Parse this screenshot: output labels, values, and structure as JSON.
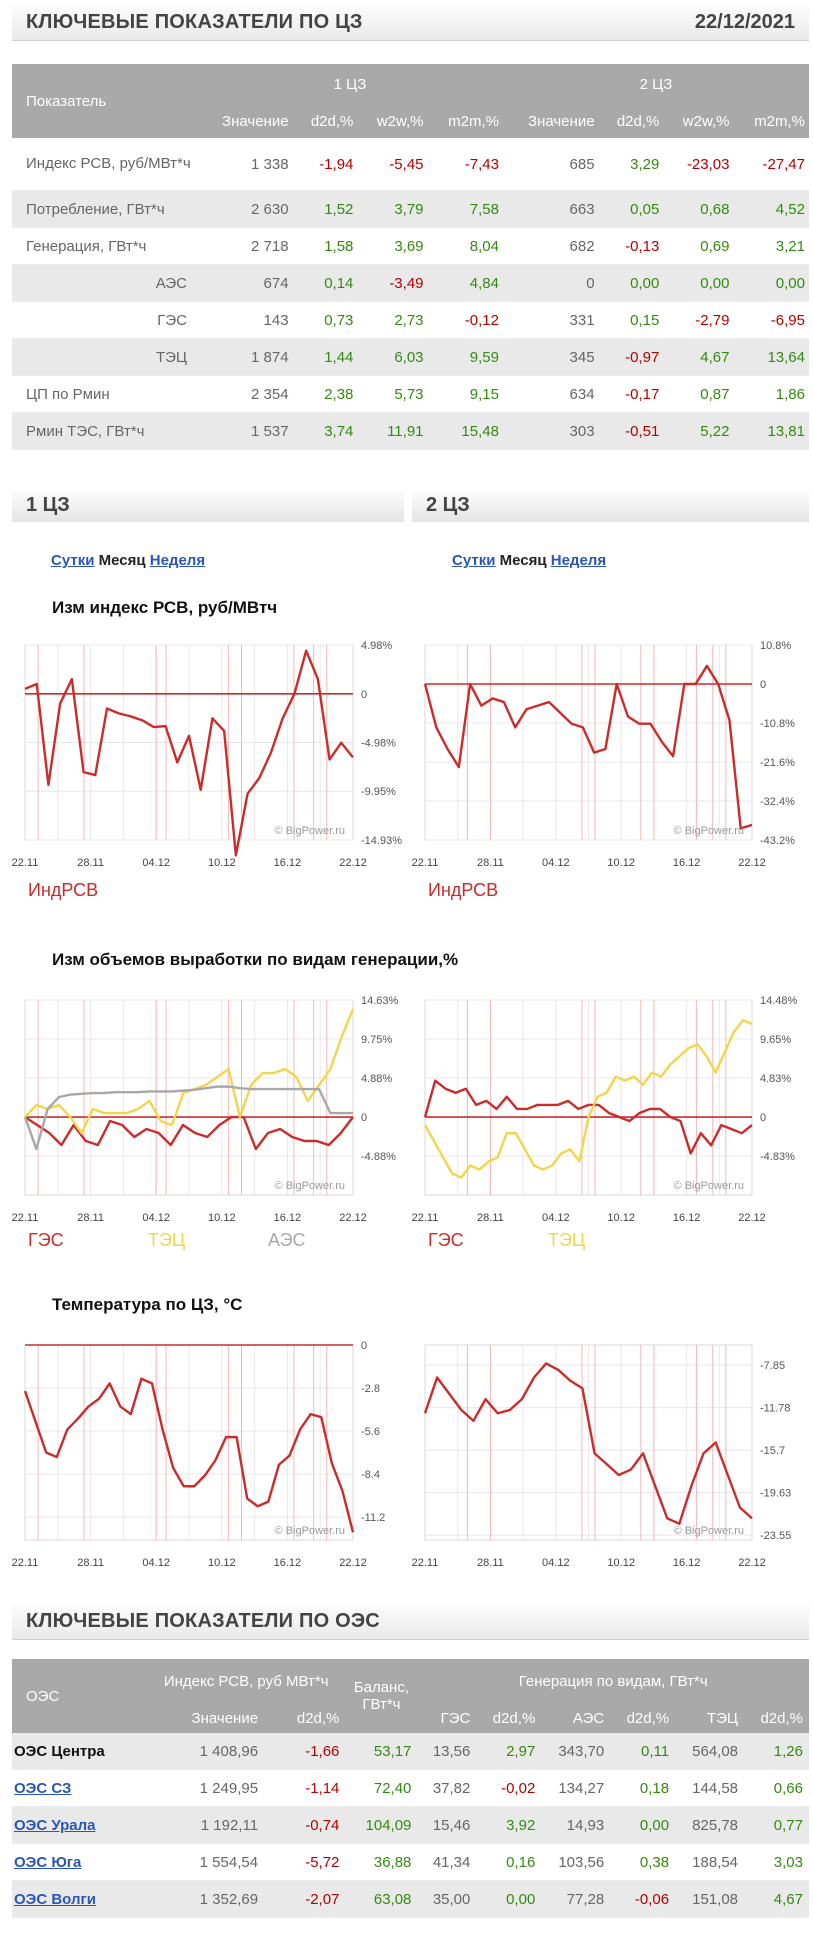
{
  "header": {
    "title": "КЛЮЧЕВЫЕ ПОКАЗАТЕЛИ ПО ЦЗ",
    "date": "22/12/2021"
  },
  "kp_table": {
    "col_indicator": "Показатель",
    "zone1": "1 ЦЗ",
    "zone2": "2 ЦЗ",
    "subcols": [
      "Значение",
      "d2d,%",
      "w2w,%",
      "m2m,%",
      "Значение",
      "d2d,%",
      "w2w,%",
      "m2m,%"
    ],
    "rows": [
      {
        "name": "Индекс РСВ, руб/МВт*ч",
        "values": [
          "1 338",
          "-1,94",
          "-5,45",
          "-7,43",
          "685",
          "3,29",
          "-23,03",
          "-27,47"
        ]
      },
      {
        "name": "Потребление, ГВт*ч",
        "values": [
          "2 630",
          "1,52",
          "3,79",
          "7,58",
          "663",
          "0,05",
          "0,68",
          "4,52"
        ]
      },
      {
        "name": "Генерация, ГВт*ч",
        "values": [
          "2 718",
          "1,58",
          "3,69",
          "8,04",
          "682",
          "-0,13",
          "0,69",
          "3,21"
        ]
      },
      {
        "name": "АЭС",
        "values": [
          "674",
          "0,14",
          "-3,49",
          "4,84",
          "0",
          "0,00",
          "0,00",
          "0,00"
        ]
      },
      {
        "name": "ГЭС",
        "values": [
          "143",
          "0,73",
          "2,73",
          "-0,12",
          "331",
          "0,15",
          "-2,79",
          "-6,95"
        ]
      },
      {
        "name": "ТЭЦ",
        "values": [
          "1 874",
          "1,44",
          "6,03",
          "9,59",
          "345",
          "-0,97",
          "4,67",
          "13,64"
        ]
      },
      {
        "name": "ЦП по Рмин",
        "values": [
          "2 354",
          "2,38",
          "5,73",
          "9,15",
          "634",
          "-0,17",
          "0,87",
          "1,86"
        ]
      },
      {
        "name": "Рмин ТЭС, ГВт*ч",
        "values": [
          "1 537",
          "3,74",
          "11,91",
          "15,48",
          "303",
          "-0,51",
          "5,22",
          "13,81"
        ]
      }
    ]
  },
  "zones": {
    "left": "1 ЦЗ",
    "right": "2 ЦЗ"
  },
  "tabs": {
    "day": "Сутки",
    "month": "Месяц",
    "week": "Неделя"
  },
  "chart_titles": {
    "price": "Изм индекс РСВ, руб/МВтч",
    "gen": "Изм объемов выработки по видам генерации,%",
    "temp": "Температура по ЦЗ, °С"
  },
  "legends": {
    "index": "ИндРСВ",
    "ges": "ГЭС",
    "tec": "ТЭЦ",
    "aes": "АЭС"
  },
  "watermark": "© BigPower.ru",
  "x_ticks": [
    "22.11",
    "28.11",
    "04.12",
    "10.12",
    "16.12",
    "22.12"
  ],
  "colors": {
    "red": "#cc2b2b",
    "yellow": "#f2d54a",
    "gray": "#a8a8a8",
    "link": "#2a56b8",
    "header_bg": "#a9a9a9"
  },
  "chart_data": [
    {
      "type": "line",
      "title": "Изм индекс РСВ, руб/МВтч",
      "zone": "1 ЦЗ",
      "ylim": [
        -14.93,
        4.98
      ],
      "yticks": [
        "4.98%",
        "0",
        "-4.98%",
        "-9.95%",
        "-14.93%"
      ],
      "ytick_values": [
        4.98,
        0,
        -4.98,
        -9.95,
        -14.93
      ],
      "series": [
        {
          "name": "ИндРСВ",
          "values": [
            0.5,
            1.0,
            -9.3,
            -1.0,
            1.5,
            -8.0,
            -8.3,
            -1.5,
            -2.0,
            -2.3,
            -2.7,
            -3.4,
            -3.3,
            -7.0,
            -4.3,
            -9.8,
            -2.5,
            -3.8,
            -16.5,
            -10.2,
            -8.6,
            -6.0,
            -2.5,
            0,
            4.4,
            1.5,
            -6.7,
            -5.0,
            -6.5
          ]
        }
      ]
    },
    {
      "type": "line",
      "title": "Изм индекс РСВ, руб/МВтч",
      "zone": "2 ЦЗ",
      "ylim": [
        -43.2,
        10.8
      ],
      "yticks": [
        "10.8%",
        "0",
        "-10.8%",
        "-21.6%",
        "-32.4%",
        "-43.2%"
      ],
      "ytick_values": [
        10.8,
        0,
        -10.8,
        -21.6,
        -32.4,
        -43.2
      ],
      "series": [
        {
          "name": "ИндРСВ",
          "values": [
            0,
            -12.0,
            -18.0,
            -23.0,
            0,
            -6.0,
            -4.0,
            -5.0,
            -12.0,
            -7.0,
            -6.0,
            -5.0,
            -8.0,
            -11.0,
            -12.0,
            -19.0,
            -18.0,
            0,
            -9.0,
            -11.0,
            -11.0,
            -16.0,
            -20.0,
            0,
            0,
            5.0,
            0,
            -10.0,
            -40.0,
            -39.0
          ]
        }
      ]
    },
    {
      "type": "line",
      "title": "Изм объемов выработки по видам генерации,%",
      "zone": "1 ЦЗ",
      "ylim": [
        -9.75,
        14.63
      ],
      "yticks": [
        "14.63%",
        "9.75%",
        "4.88%",
        "0",
        "-4.88%"
      ],
      "ytick_values": [
        14.63,
        9.75,
        4.88,
        0,
        -4.88
      ],
      "series": [
        {
          "name": "ГЭС",
          "values": [
            0,
            -1.0,
            -2.0,
            -3.5,
            -1.0,
            -3.0,
            -3.5,
            -0.5,
            -1.0,
            -2.5,
            -1.5,
            -2.0,
            -3.5,
            -1.0,
            -2.0,
            -2.5,
            -1.0,
            0,
            0,
            -4.0,
            -2.0,
            -1.5,
            -2.5,
            -3.0,
            -3.0,
            -3.5,
            -2.0,
            0
          ]
        },
        {
          "name": "ТЭЦ",
          "values": [
            0,
            1.5,
            1.0,
            1.5,
            0,
            -2.0,
            1.0,
            0.5,
            0.5,
            0.5,
            1.0,
            2.0,
            -0.5,
            -1.0,
            3.0,
            3.5,
            4.0,
            5.0,
            6.0,
            0,
            4.0,
            5.5,
            5.5,
            6.0,
            5.0,
            2.0,
            4.0,
            6.0,
            10.0,
            13.5
          ]
        },
        {
          "name": "АЭС",
          "values": [
            0,
            -4.0,
            1.0,
            2.5,
            2.8,
            2.9,
            3.0,
            3.0,
            3.1,
            3.1,
            3.1,
            3.2,
            3.2,
            3.2,
            3.3,
            3.4,
            3.6,
            3.8,
            3.8,
            3.6,
            3.5,
            3.5,
            3.5,
            3.5,
            3.5,
            3.5,
            3.5,
            0.5,
            0.5,
            0.5
          ]
        }
      ]
    },
    {
      "type": "line",
      "title": "Изм объемов выработки по видам генерации,%",
      "zone": "2 ЦЗ",
      "ylim": [
        -9.65,
        14.48
      ],
      "yticks": [
        "14.48%",
        "9.65%",
        "4.83%",
        "0",
        "-4.83%"
      ],
      "ytick_values": [
        14.48,
        9.65,
        4.83,
        0,
        -4.83
      ],
      "series": [
        {
          "name": "ГЭС",
          "values": [
            0,
            4.5,
            3.5,
            3.0,
            3.5,
            1.5,
            2.0,
            1.0,
            2.5,
            1.0,
            1.0,
            1.5,
            1.5,
            1.5,
            2.0,
            1.0,
            1.5,
            1.5,
            0.5,
            0,
            -0.5,
            0.5,
            1.0,
            1.0,
            0,
            -0.5,
            -4.5,
            -2.0,
            -3.5,
            -1.0,
            -1.5,
            -2.0,
            -1.0
          ]
        },
        {
          "name": "ТЭЦ",
          "values": [
            -1.0,
            -3.0,
            -5.0,
            -7.0,
            -7.5,
            -6.0,
            -6.5,
            -5.5,
            -5.0,
            -2.0,
            -2.0,
            -4.0,
            -6.0,
            -6.5,
            -6.0,
            -4.5,
            -4.0,
            -5.5,
            0,
            2.5,
            3.0,
            5.0,
            4.5,
            5.0,
            4.0,
            5.5,
            5.0,
            6.5,
            7.5,
            8.5,
            9.0,
            7.5,
            5.5,
            8.0,
            10.5,
            12.0,
            11.5
          ]
        }
      ]
    },
    {
      "type": "line",
      "title": "Температура по ЦЗ, °С",
      "zone": "1 ЦЗ",
      "ylim": [
        -12.7,
        0
      ],
      "yticks": [
        "0",
        "-2.8",
        "-5.6",
        "-8.4",
        "-11.2"
      ],
      "ytick_values": [
        0,
        -2.8,
        -5.6,
        -8.4,
        -11.2
      ],
      "series": [
        {
          "values": [
            -3.0,
            -5.0,
            -7.0,
            -7.3,
            -5.5,
            -4.8,
            -4.0,
            -3.5,
            -2.5,
            -4.0,
            -4.5,
            -2.2,
            -2.5,
            -5.5,
            -8.0,
            -9.2,
            -9.2,
            -8.5,
            -7.5,
            -6.0,
            -6.0,
            -10.0,
            -10.5,
            -10.2,
            -7.8,
            -7.2,
            -5.5,
            -4.5,
            -4.7,
            -7.7,
            -9.5,
            -12.2
          ]
        }
      ]
    },
    {
      "type": "line",
      "title": "Температура по ЦЗ, °С",
      "zone": "2 ЦЗ",
      "ylim": [
        -24.0,
        -6.0
      ],
      "yticks": [
        "-7.85",
        "-11.78",
        "-15.7",
        "-19.63",
        "-23.55"
      ],
      "ytick_values": [
        -7.85,
        -11.78,
        -15.7,
        -19.63,
        -23.55
      ],
      "series": [
        {
          "values": [
            -12.3,
            -9.0,
            -10.5,
            -12.0,
            -13.0,
            -11.0,
            -12.3,
            -12.0,
            -11.0,
            -9.0,
            -7.7,
            -8.3,
            -9.3,
            -10.0,
            -16.0,
            -17.0,
            -18.0,
            -17.5,
            -16.0,
            -19.0,
            -22.0,
            -22.5,
            -19.0,
            -16.0,
            -15.0,
            -18.0,
            -21.0,
            -22.0
          ]
        }
      ]
    }
  ],
  "oes": {
    "title": "КЛЮЧЕВЫЕ ПОКАЗАТЕЛИ ПО ОЭС",
    "h_oes": "ОЭС",
    "h_index": "Индекс РСВ, руб МВт*ч",
    "h_balance": "Баланс, ГВт*ч",
    "h_gen": "Генерация по видам, ГВт*ч",
    "subcols": [
      "Значение",
      "d2d,%",
      "ГЭС",
      "d2d,%",
      "АЭС",
      "d2d,%",
      "ТЭЦ",
      "d2d,%"
    ],
    "rows": [
      {
        "name": "ОЭС Центра",
        "link": false,
        "values": [
          "1 408,96",
          "-1,66",
          "53,17",
          "13,56",
          "2,97",
          "343,70",
          "0,11",
          "564,08",
          "1,26"
        ]
      },
      {
        "name": "ОЭС СЗ",
        "link": true,
        "values": [
          "1 249,95",
          "-1,14",
          "72,40",
          "37,82",
          "-0,02",
          "134,27",
          "0,18",
          "144,58",
          "0,66"
        ]
      },
      {
        "name": "ОЭС Урала",
        "link": true,
        "values": [
          "1 192,11",
          "-0,74",
          "104,09",
          "15,46",
          "3,92",
          "14,93",
          "0,00",
          "825,78",
          "0,77"
        ]
      },
      {
        "name": "ОЭС Юга",
        "link": true,
        "values": [
          "1 554,54",
          "-5,72",
          "36,88",
          "41,34",
          "0,16",
          "103,56",
          "0,38",
          "188,54",
          "3,03"
        ]
      },
      {
        "name": "ОЭС Волги",
        "link": true,
        "values": [
          "1 352,69",
          "-2,07",
          "63,08",
          "35,00",
          "0,00",
          "77,28",
          "-0,06",
          "151,08",
          "4,67"
        ]
      }
    ]
  }
}
